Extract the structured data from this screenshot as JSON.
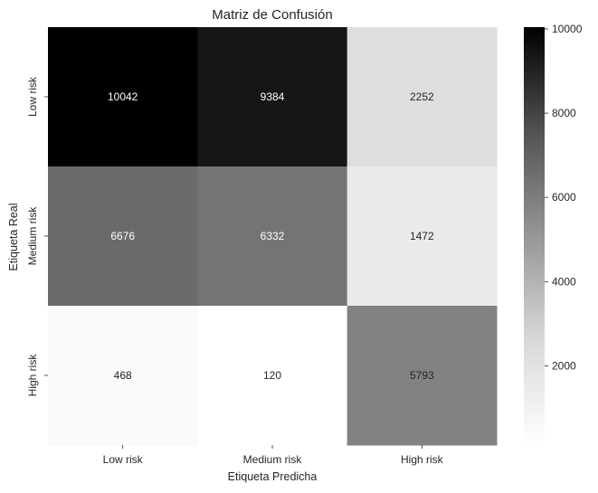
{
  "chart_data": {
    "type": "heatmap",
    "title": "Matriz de Confusión",
    "xlabel": "Etiqueta Predicha",
    "ylabel": "Etiqueta Real",
    "x_categories": [
      "Low risk",
      "Medium risk",
      "High risk"
    ],
    "y_categories": [
      "Low risk",
      "Medium risk",
      "High risk"
    ],
    "values": [
      [
        10042,
        9384,
        2252
      ],
      [
        6676,
        6332,
        1472
      ],
      [
        468,
        120,
        5793
      ]
    ],
    "colormap": "Greys",
    "colorbar": {
      "range": [
        120,
        10042
      ],
      "ticks": [
        2000,
        4000,
        6000,
        8000,
        10000
      ]
    },
    "grid": false
  }
}
